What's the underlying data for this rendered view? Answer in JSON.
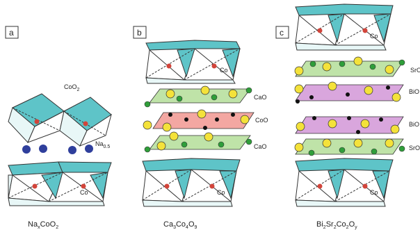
{
  "panels": [
    {
      "id": "a",
      "label": "a",
      "caption_main": "Na",
      "caption_x": "x",
      "caption_rest": "CoO",
      "caption_2": "2",
      "layer_labels": {
        "top": "CoO",
        "top_sub": "2",
        "na": "Na",
        "na_sub": "0.5",
        "co": "Co"
      }
    },
    {
      "id": "b",
      "label": "b",
      "caption_main": "Ca",
      "caption_3": "3",
      "caption_co": "Co",
      "caption_4": "4",
      "caption_o": "O",
      "caption_9": "9",
      "layer_labels": {
        "co_top": "Co",
        "cao_1": "CaO",
        "coo": "CoO",
        "cao_2": "CaO",
        "co_bot": "Co"
      }
    },
    {
      "id": "c",
      "label": "c",
      "caption_main": "Bi",
      "caption_2a": "2",
      "caption_sr": "Sr",
      "caption_2b": "2",
      "caption_co": "Co",
      "caption_2c": "2",
      "caption_o": "O",
      "caption_y": "y",
      "layer_labels": {
        "co_top": "Co",
        "sro_1": "SrO",
        "bio_1": "BiO",
        "bio_2": "BiO",
        "sro_2": "SrO",
        "co_bot": "Co"
      }
    }
  ],
  "colors": {
    "octahedron_face": "#5ec4c8",
    "octahedron_light": "#e8f7f7",
    "cobalt": "#d2443a",
    "sodium": "#2f3f9c",
    "ca_sr_layer": "#bfe3a8",
    "coo_layer": "#f3a7a2",
    "bio_layer": "#d9a6dd",
    "yellow_atom": "#f4e23a",
    "green_atom": "#2f9e3a",
    "black_atom": "#111111"
  }
}
